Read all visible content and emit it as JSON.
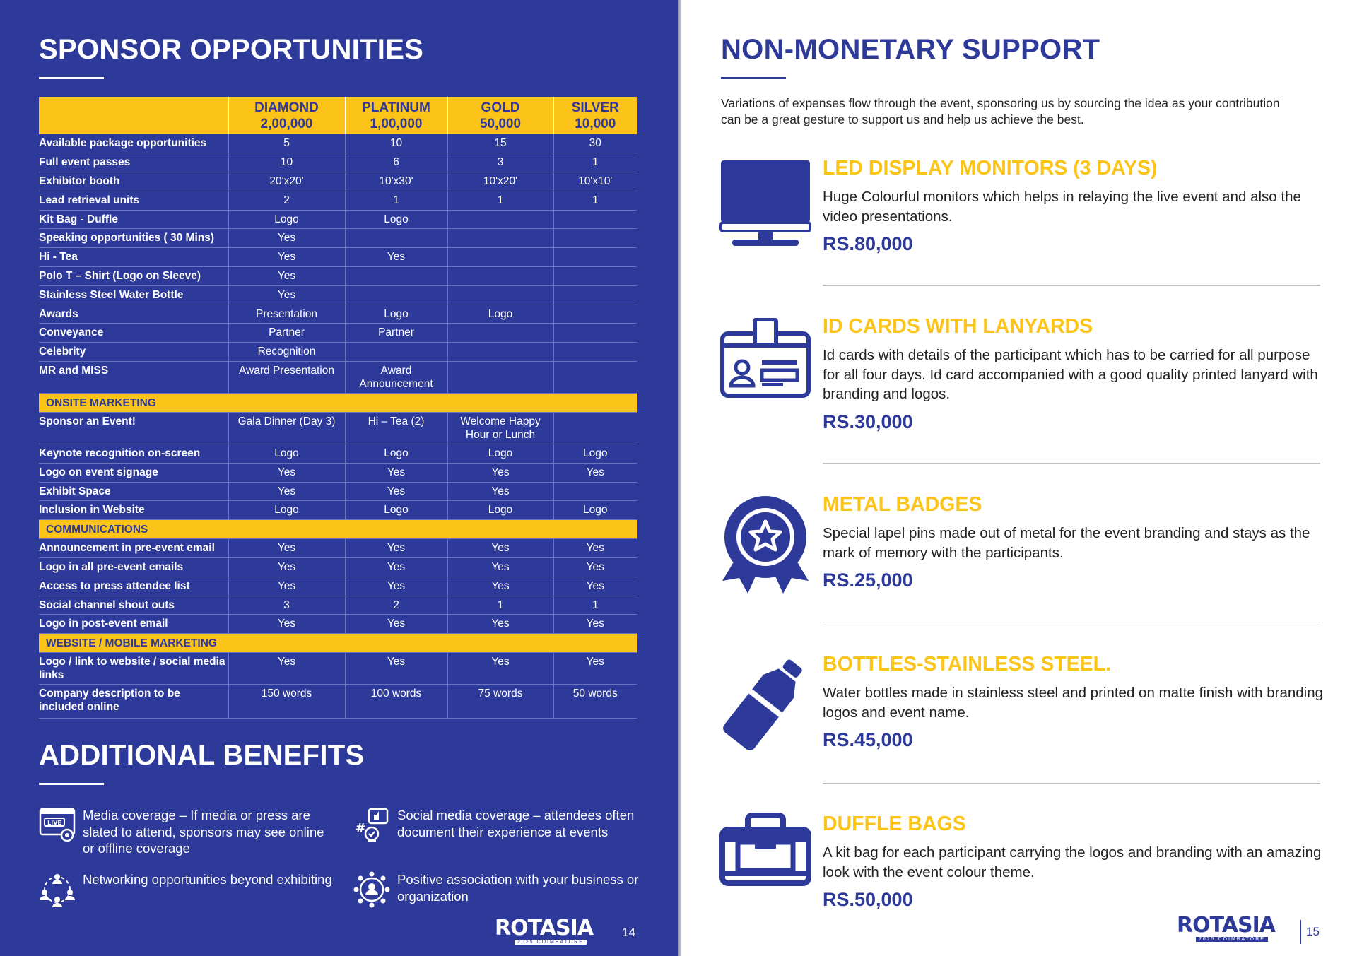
{
  "left": {
    "title": "SPONSOR OPPORTUNITIES",
    "table": {
      "headers": [
        {
          "name": "",
          "amount": ""
        },
        {
          "name": "DIAMOND",
          "amount": "2,00,000"
        },
        {
          "name": "PLATINUM",
          "amount": "1,00,000"
        },
        {
          "name": "GOLD",
          "amount": "50,000"
        },
        {
          "name": "SILVER",
          "amount": "10,000"
        }
      ],
      "rows": [
        {
          "type": "row",
          "cells": [
            "Available package opportunities",
            "5",
            "10",
            "15",
            "30"
          ]
        },
        {
          "type": "row",
          "cells": [
            "Full event passes",
            "10",
            "6",
            "3",
            "1"
          ]
        },
        {
          "type": "row",
          "cells": [
            "Exhibitor booth",
            "20'x20'",
            "10'x30'",
            "10'x20'",
            "10'x10'"
          ]
        },
        {
          "type": "row",
          "cells": [
            "Lead retrieval units",
            "2",
            "1",
            "1",
            "1"
          ]
        },
        {
          "type": "row",
          "cells": [
            "Kit Bag - Duffle",
            "Logo",
            "Logo",
            "",
            ""
          ]
        },
        {
          "type": "row",
          "cells": [
            "Speaking opportunities ( 30 Mins)",
            "Yes",
            "",
            "",
            ""
          ]
        },
        {
          "type": "row",
          "cells": [
            "Hi - Tea",
            "Yes",
            "Yes",
            "",
            ""
          ]
        },
        {
          "type": "row",
          "cells": [
            "Polo T – Shirt (Logo on Sleeve)",
            "Yes",
            "",
            "",
            ""
          ]
        },
        {
          "type": "row",
          "cells": [
            "Stainless Steel Water Bottle",
            "Yes",
            "",
            "",
            ""
          ]
        },
        {
          "type": "row",
          "cells": [
            "Awards",
            "Presentation",
            "Logo",
            "Logo",
            ""
          ]
        },
        {
          "type": "row",
          "cells": [
            "Conveyance",
            "Partner",
            "Partner",
            "",
            ""
          ]
        },
        {
          "type": "row",
          "cells": [
            "Celebrity",
            "Recognition",
            "",
            "",
            ""
          ]
        },
        {
          "type": "tall",
          "cells": [
            "MR and MISS",
            "Award Presentation",
            "Award Announcement",
            "",
            ""
          ]
        },
        {
          "type": "section",
          "label": "ONSITE MARKETING"
        },
        {
          "type": "tall",
          "cells": [
            "Sponsor an Event!",
            "Gala Dinner (Day 3)",
            "Hi – Tea (2)",
            "Welcome Happy Hour or Lunch",
            ""
          ]
        },
        {
          "type": "row",
          "cells": [
            "Keynote recognition on-screen",
            "Logo",
            "Logo",
            "Logo",
            "Logo"
          ]
        },
        {
          "type": "row",
          "cells": [
            "Logo on event signage",
            "Yes",
            "Yes",
            "Yes",
            "Yes"
          ]
        },
        {
          "type": "row",
          "cells": [
            "Exhibit Space",
            "Yes",
            "Yes",
            "Yes",
            ""
          ]
        },
        {
          "type": "row",
          "cells": [
            "Inclusion in Website",
            "Logo",
            "Logo",
            "Logo",
            "Logo"
          ]
        },
        {
          "type": "section",
          "label": "COMMUNICATIONS"
        },
        {
          "type": "row",
          "cells": [
            "Announcement in pre-event email",
            "Yes",
            "Yes",
            "Yes",
            "Yes"
          ]
        },
        {
          "type": "row",
          "cells": [
            "Logo in all pre-event emails",
            "Yes",
            "Yes",
            "Yes",
            "Yes"
          ]
        },
        {
          "type": "row",
          "cells": [
            "Access to press attendee list",
            "Yes",
            "Yes",
            "Yes",
            "Yes"
          ]
        },
        {
          "type": "row",
          "cells": [
            "Social channel shout outs",
            "3",
            "2",
            "1",
            "1"
          ]
        },
        {
          "type": "row",
          "cells": [
            "Logo in post-event email",
            "Yes",
            "Yes",
            "Yes",
            "Yes"
          ]
        },
        {
          "type": "section",
          "label": "WEBSITE / MOBILE MARKETING"
        },
        {
          "type": "tall",
          "cells": [
            "Logo / link to website / social media links",
            "Yes",
            "Yes",
            "Yes",
            "Yes"
          ]
        },
        {
          "type": "tall2",
          "cells": [
            "Company description to be included online",
            "150 words",
            "100 words",
            "75 words",
            "50 words"
          ]
        }
      ]
    },
    "benefits_title": "ADDITIONAL BENEFITS",
    "benefits": [
      {
        "icon": "live-media-icon",
        "text": "Media coverage – If media or press are slated to attend, sponsors may see online or offline coverage"
      },
      {
        "icon": "social-media-icon",
        "text": "Social media coverage – attendees often document their experience at events"
      },
      {
        "icon": "network-icon",
        "text": "Networking opportunities beyond exhibiting"
      },
      {
        "icon": "association-icon",
        "text": "Positive association with your business or organization"
      }
    ],
    "logo": "ROTASIA",
    "logo_sub": "2025 COIMBATORE",
    "page_number": "14"
  },
  "right": {
    "title": "NON-MONETARY SUPPORT",
    "intro": "Variations of expenses flow through the event, sponsoring us by sourcing the idea as your contribution can be a great gesture to support us and help us achieve the best.",
    "items": [
      {
        "icon": "monitor-icon",
        "title": "LED DISPLAY MONITORS (3 DAYS)",
        "desc": "Huge Colourful monitors which helps in relaying the live event and also the video presentations.",
        "price": "RS.80,000"
      },
      {
        "icon": "id-card-icon",
        "title": "ID CARDS WITH LANYARDS",
        "desc": "Id cards with details of the participant which has to be carried for all purpose for all four days. Id card accompanied with a good quality printed lanyard with branding and logos.",
        "price": "RS.30,000"
      },
      {
        "icon": "badge-icon",
        "title": "METAL BADGES",
        "desc": "Special lapel pins made out of metal for the event branding and stays as the mark of memory with the participants.",
        "price": "RS.25,000"
      },
      {
        "icon": "bottle-icon",
        "title": "BOTTLES-STAINLESS STEEL.",
        "desc": "Water bottles made in stainless steel and printed on matte finish with branding logos and event name.",
        "price": "RS.45,000"
      },
      {
        "icon": "duffle-bag-icon",
        "title": "DUFFLE BAGS",
        "desc": "A kit bag for each participant carrying the logos and branding with an amazing look with the event colour theme.",
        "price": "RS.50,000"
      }
    ],
    "logo": "ROTASIA",
    "logo_sub": "2025 COIMBATORE",
    "page_number": "15"
  },
  "colors": {
    "navy": "#2e3a9a",
    "gold": "#fcc419"
  }
}
